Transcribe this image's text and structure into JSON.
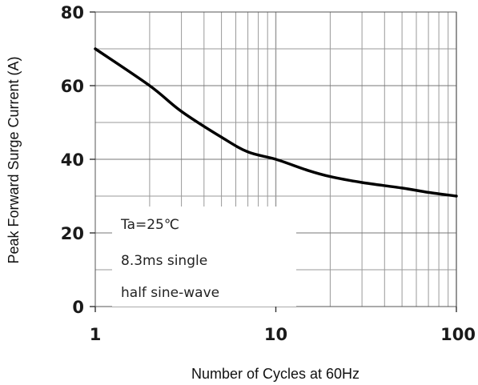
{
  "chart_data": {
    "type": "line",
    "title": "",
    "xlabel": "Number of Cycles at 60Hz",
    "ylabel": "Peak  Forward Surge Current (A)",
    "x_scale": "log",
    "xlim": [
      1,
      100
    ],
    "ylim": [
      0,
      80
    ],
    "x_ticks": [
      "1",
      "10",
      "100"
    ],
    "y_ticks": [
      "0",
      "20",
      "40",
      "60",
      "80"
    ],
    "grid": true,
    "series": [
      {
        "values": [
          {
            "x": 1,
            "y": 70
          },
          {
            "x": 2,
            "y": 60
          },
          {
            "x": 3,
            "y": 53
          },
          {
            "x": 5,
            "y": 46
          },
          {
            "x": 7,
            "y": 42
          },
          {
            "x": 10,
            "y": 40
          },
          {
            "x": 15,
            "y": 37
          },
          {
            "x": 20,
            "y": 35.3
          },
          {
            "x": 30,
            "y": 33.7
          },
          {
            "x": 50,
            "y": 32.2
          },
          {
            "x": 70,
            "y": 31
          },
          {
            "x": 100,
            "y": 30
          }
        ]
      }
    ],
    "annotations": [
      "Ta=25℃",
      "8.3ms single",
      "half sine-wave"
    ]
  }
}
